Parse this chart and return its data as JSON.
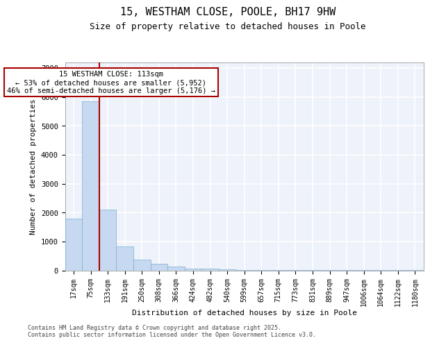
{
  "title_line1": "15, WESTHAM CLOSE, POOLE, BH17 9HW",
  "title_line2": "Size of property relative to detached houses in Poole",
  "xlabel": "Distribution of detached houses by size in Poole",
  "ylabel": "Number of detached properties",
  "categories": [
    "17sqm",
    "75sqm",
    "133sqm",
    "191sqm",
    "250sqm",
    "308sqm",
    "366sqm",
    "424sqm",
    "482sqm",
    "540sqm",
    "599sqm",
    "657sqm",
    "715sqm",
    "773sqm",
    "831sqm",
    "889sqm",
    "947sqm",
    "1006sqm",
    "1064sqm",
    "1122sqm",
    "1180sqm"
  ],
  "values": [
    1800,
    5850,
    2100,
    830,
    370,
    240,
    130,
    70,
    50,
    30,
    20,
    15,
    10,
    8,
    5,
    5,
    5,
    3,
    3,
    2,
    2
  ],
  "bar_color": "#c6d9f0",
  "bar_edgecolor": "#7bafd4",
  "background_color": "#eef2fa",
  "grid_color": "#ffffff",
  "vline_x_data": 1.5,
  "vline_color": "#aa0000",
  "annotation_text": "15 WESTHAM CLOSE: 113sqm\n← 53% of detached houses are smaller (5,952)\n46% of semi-detached houses are larger (5,176) →",
  "annotation_box_color": "#aa0000",
  "ylim": [
    0,
    7200
  ],
  "yticks": [
    0,
    1000,
    2000,
    3000,
    4000,
    5000,
    6000,
    7000
  ],
  "footnote": "Contains HM Land Registry data © Crown copyright and database right 2025.\nContains public sector information licensed under the Open Government Licence v3.0.",
  "title_fontsize": 11,
  "subtitle_fontsize": 9,
  "axis_label_fontsize": 8,
  "tick_fontsize": 7,
  "annot_fontsize": 7.5
}
